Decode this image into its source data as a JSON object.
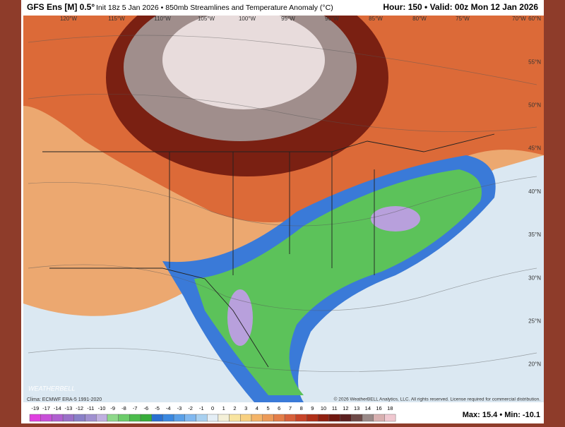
{
  "header": {
    "model": "GFS Ens [M] 0.5°",
    "description": "Init 18z 5 Jan 2026 • 850mb Streamlines and Temperature Anomaly (°C)",
    "valid": "Hour: 150 • Valid: 00z Mon 12 Jan 2026"
  },
  "map": {
    "longitudes": [
      "120°W",
      "115°W",
      "110°W",
      "105°W",
      "100°W",
      "95°W",
      "90°W",
      "85°W",
      "80°W",
      "75°W",
      "70°W"
    ],
    "latitudes": [
      "60°N",
      "55°N",
      "50°N",
      "45°N",
      "40°N",
      "35°N",
      "30°N",
      "25°N",
      "20°N"
    ],
    "logo": "WEATHERBELL"
  },
  "footer": {
    "climo": "Clima: ECMWF ERA-5 1991-2020",
    "copyright": "© 2026 WeatherBELL Analytics, LLC. All rights reserved. License required for commercial distribution.",
    "extremes": "Max: 15.4 • Min: -10.1"
  },
  "legend": {
    "labels": [
      -19,
      -17,
      -14,
      -13,
      -12,
      -11,
      -10,
      -9,
      -8,
      -7,
      -6,
      -5,
      -4,
      -3,
      -2,
      -1,
      0,
      1,
      2,
      3,
      4,
      5,
      6,
      7,
      8,
      9,
      10,
      11,
      12,
      13,
      14,
      16,
      18
    ],
    "colors": [
      "#e040e0",
      "#c850d8",
      "#b060d0",
      "#9a70c8",
      "#8a80c8",
      "#a090d0",
      "#c0b0e0",
      "#8ed88a",
      "#6ccc6a",
      "#4cbc4c",
      "#38ac3a",
      "#2a70d0",
      "#3a88e0",
      "#5aa0e8",
      "#80b8f0",
      "#a8d0f0",
      "#e4eef6",
      "#f4f0d8",
      "#f8e4a0",
      "#f8d080",
      "#f4b468",
      "#ec9a58",
      "#e47e48",
      "#d8603a",
      "#c84428",
      "#b03018",
      "#902010",
      "#701810",
      "#5a2020",
      "#6e4a48",
      "#9a8a88",
      "#d8b0b0",
      "#f0c8d0"
    ]
  }
}
